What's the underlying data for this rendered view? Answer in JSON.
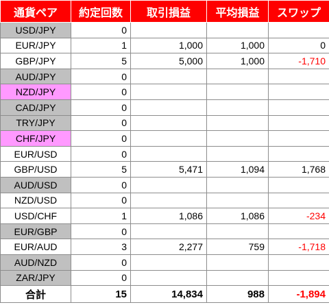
{
  "colors": {
    "header_bg": "#ff0000",
    "header_text": "#ffffff",
    "gray_pair": "#c0c0c0",
    "pink_pair": "#ff99ff",
    "negative": "#ff0000"
  },
  "headers": [
    "通貨ペア",
    "約定回数",
    "取引損益",
    "平均損益",
    "スワップ"
  ],
  "rows": [
    {
      "pair": "USD/JPY",
      "count": "0",
      "pnl": "",
      "avg": "",
      "swap": "",
      "pair_bg": "gray",
      "swap_negative": false
    },
    {
      "pair": "EUR/JPY",
      "count": "1",
      "pnl": "1,000",
      "avg": "1,000",
      "swap": "0",
      "pair_bg": "none",
      "swap_negative": false
    },
    {
      "pair": "GBP/JPY",
      "count": "5",
      "pnl": "5,000",
      "avg": "1,000",
      "swap": "-1,710",
      "pair_bg": "none",
      "swap_negative": true
    },
    {
      "pair": "AUD/JPY",
      "count": "0",
      "pnl": "",
      "avg": "",
      "swap": "",
      "pair_bg": "gray",
      "swap_negative": false
    },
    {
      "pair": "NZD/JPY",
      "count": "0",
      "pnl": "",
      "avg": "",
      "swap": "",
      "pair_bg": "pink",
      "swap_negative": false
    },
    {
      "pair": "CAD/JPY",
      "count": "0",
      "pnl": "",
      "avg": "",
      "swap": "",
      "pair_bg": "gray",
      "swap_negative": false
    },
    {
      "pair": "TRY/JPY",
      "count": "0",
      "pnl": "",
      "avg": "",
      "swap": "",
      "pair_bg": "gray",
      "swap_negative": false
    },
    {
      "pair": "CHF/JPY",
      "count": "0",
      "pnl": "",
      "avg": "",
      "swap": "",
      "pair_bg": "pink",
      "swap_negative": false
    },
    {
      "pair": "EUR/USD",
      "count": "0",
      "pnl": "",
      "avg": "",
      "swap": "",
      "pair_bg": "none",
      "swap_negative": false
    },
    {
      "pair": "GBP/USD",
      "count": "5",
      "pnl": "5,471",
      "avg": "1,094",
      "swap": "1,768",
      "pair_bg": "none",
      "swap_negative": false
    },
    {
      "pair": "AUD/USD",
      "count": "0",
      "pnl": "",
      "avg": "",
      "swap": "",
      "pair_bg": "gray",
      "swap_negative": false
    },
    {
      "pair": "NZD/USD",
      "count": "0",
      "pnl": "",
      "avg": "",
      "swap": "",
      "pair_bg": "none",
      "swap_negative": false
    },
    {
      "pair": "USD/CHF",
      "count": "1",
      "pnl": "1,086",
      "avg": "1,086",
      "swap": "-234",
      "pair_bg": "none",
      "swap_negative": true
    },
    {
      "pair": "EUR/GBP",
      "count": "0",
      "pnl": "",
      "avg": "",
      "swap": "",
      "pair_bg": "gray",
      "swap_negative": false
    },
    {
      "pair": "EUR/AUD",
      "count": "3",
      "pnl": "2,277",
      "avg": "759",
      "swap": "-1,718",
      "pair_bg": "none",
      "swap_negative": true
    },
    {
      "pair": "AUD/NZD",
      "count": "0",
      "pnl": "",
      "avg": "",
      "swap": "",
      "pair_bg": "gray",
      "swap_negative": false
    },
    {
      "pair": "ZAR/JPY",
      "count": "0",
      "pnl": "",
      "avg": "",
      "swap": "",
      "pair_bg": "gray",
      "swap_negative": false
    }
  ],
  "total": {
    "label": "合計",
    "count": "15",
    "pnl": "14,834",
    "avg": "988",
    "swap": "-1,894",
    "swap_negative": true
  }
}
